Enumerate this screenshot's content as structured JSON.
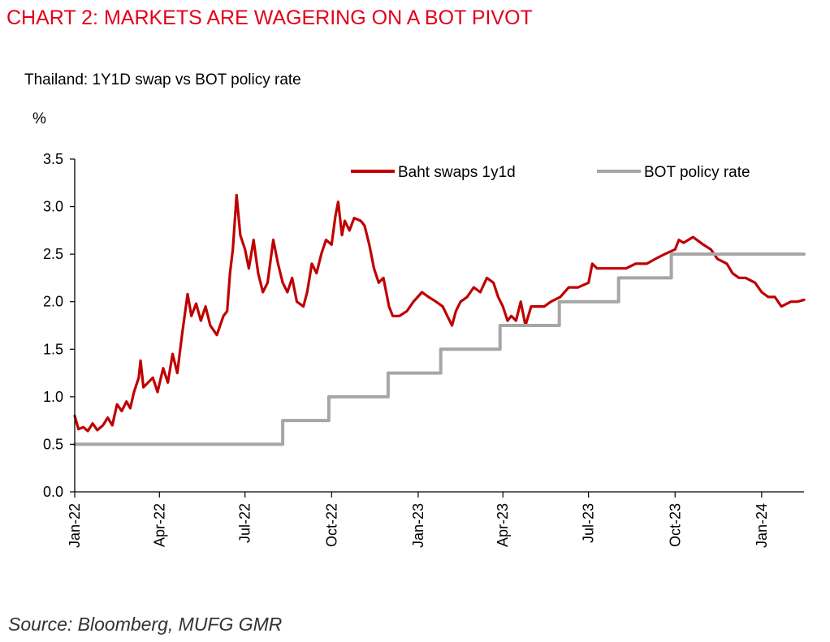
{
  "header": {
    "title": "CHART 2: MARKETS ARE WAGERING ON A BOT PIVOT",
    "subtitle": "Thailand: 1Y1D swap vs BOT policy rate",
    "unit": "%"
  },
  "footer": {
    "source": "Source: Bloomberg, MUFG GMR"
  },
  "colors": {
    "title": "#e3001b",
    "swap": "#c00000",
    "policy": "#a6a6a6"
  },
  "chart_data": {
    "type": "line",
    "title": "Thailand: 1Y1D swap vs BOT policy rate",
    "ylabel": "%",
    "ylim": [
      0,
      3.5
    ],
    "yticks": [
      "0.0",
      "0.5",
      "1.0",
      "1.5",
      "2.0",
      "2.5",
      "3.0",
      "3.5"
    ],
    "x_range": [
      "2022-01-01",
      "2024-02-15"
    ],
    "xticks": [
      {
        "date": "2022-01-01",
        "label": "Jan-22"
      },
      {
        "date": "2022-04-01",
        "label": "Apr-22"
      },
      {
        "date": "2022-07-01",
        "label": "Jul-22"
      },
      {
        "date": "2022-10-01",
        "label": "Oct-22"
      },
      {
        "date": "2023-01-01",
        "label": "Jan-23"
      },
      {
        "date": "2023-04-01",
        "label": "Apr-23"
      },
      {
        "date": "2023-07-01",
        "label": "Jul-23"
      },
      {
        "date": "2023-10-01",
        "label": "Oct-23"
      },
      {
        "date": "2024-01-01",
        "label": "Jan-24"
      }
    ],
    "legend_position": "top-right",
    "grid": false,
    "series": [
      {
        "name": "Baht swaps 1y1d",
        "color": "#c00000",
        "points": [
          [
            "2022-01-01",
            0.8
          ],
          [
            "2022-01-05",
            0.66
          ],
          [
            "2022-01-10",
            0.68
          ],
          [
            "2022-01-15",
            0.64
          ],
          [
            "2022-01-20",
            0.72
          ],
          [
            "2022-01-25",
            0.65
          ],
          [
            "2022-01-31",
            0.7
          ],
          [
            "2022-02-05",
            0.78
          ],
          [
            "2022-02-10",
            0.7
          ],
          [
            "2022-02-15",
            0.92
          ],
          [
            "2022-02-20",
            0.85
          ],
          [
            "2022-02-25",
            0.95
          ],
          [
            "2022-03-01",
            0.88
          ],
          [
            "2022-03-05",
            1.05
          ],
          [
            "2022-03-10",
            1.2
          ],
          [
            "2022-03-12",
            1.38
          ],
          [
            "2022-03-15",
            1.1
          ],
          [
            "2022-03-20",
            1.15
          ],
          [
            "2022-03-25",
            1.2
          ],
          [
            "2022-03-30",
            1.05
          ],
          [
            "2022-04-05",
            1.3
          ],
          [
            "2022-04-10",
            1.15
          ],
          [
            "2022-04-15",
            1.45
          ],
          [
            "2022-04-20",
            1.25
          ],
          [
            "2022-04-25",
            1.65
          ],
          [
            "2022-05-01",
            2.08
          ],
          [
            "2022-05-05",
            1.85
          ],
          [
            "2022-05-10",
            1.98
          ],
          [
            "2022-05-15",
            1.8
          ],
          [
            "2022-05-20",
            1.95
          ],
          [
            "2022-05-25",
            1.75
          ],
          [
            "2022-06-01",
            1.65
          ],
          [
            "2022-06-08",
            1.85
          ],
          [
            "2022-06-12",
            1.9
          ],
          [
            "2022-06-15",
            2.3
          ],
          [
            "2022-06-18",
            2.55
          ],
          [
            "2022-06-22",
            3.12
          ],
          [
            "2022-06-26",
            2.7
          ],
          [
            "2022-07-01",
            2.55
          ],
          [
            "2022-07-05",
            2.35
          ],
          [
            "2022-07-10",
            2.65
          ],
          [
            "2022-07-15",
            2.3
          ],
          [
            "2022-07-20",
            2.1
          ],
          [
            "2022-07-25",
            2.2
          ],
          [
            "2022-07-31",
            2.65
          ],
          [
            "2022-08-05",
            2.4
          ],
          [
            "2022-08-10",
            2.2
          ],
          [
            "2022-08-15",
            2.1
          ],
          [
            "2022-08-20",
            2.25
          ],
          [
            "2022-08-25",
            2.0
          ],
          [
            "2022-09-01",
            1.95
          ],
          [
            "2022-09-05",
            2.1
          ],
          [
            "2022-09-10",
            2.4
          ],
          [
            "2022-09-15",
            2.3
          ],
          [
            "2022-09-20",
            2.5
          ],
          [
            "2022-09-25",
            2.65
          ],
          [
            "2022-10-01",
            2.6
          ],
          [
            "2022-10-05",
            2.9
          ],
          [
            "2022-10-08",
            3.05
          ],
          [
            "2022-10-12",
            2.7
          ],
          [
            "2022-10-15",
            2.85
          ],
          [
            "2022-10-20",
            2.75
          ],
          [
            "2022-10-25",
            2.88
          ],
          [
            "2022-11-01",
            2.85
          ],
          [
            "2022-11-05",
            2.8
          ],
          [
            "2022-11-10",
            2.6
          ],
          [
            "2022-11-15",
            2.35
          ],
          [
            "2022-11-20",
            2.2
          ],
          [
            "2022-11-25",
            2.25
          ],
          [
            "2022-12-01",
            1.95
          ],
          [
            "2022-12-05",
            1.85
          ],
          [
            "2022-12-12",
            1.85
          ],
          [
            "2022-12-20",
            1.9
          ],
          [
            "2022-12-27",
            2.0
          ],
          [
            "2023-01-05",
            2.1
          ],
          [
            "2023-01-12",
            2.05
          ],
          [
            "2023-01-20",
            2.0
          ],
          [
            "2023-01-27",
            1.95
          ],
          [
            "2023-02-01",
            1.85
          ],
          [
            "2023-02-06",
            1.75
          ],
          [
            "2023-02-10",
            1.9
          ],
          [
            "2023-02-15",
            2.0
          ],
          [
            "2023-02-22",
            2.05
          ],
          [
            "2023-03-01",
            2.15
          ],
          [
            "2023-03-08",
            2.1
          ],
          [
            "2023-03-15",
            2.25
          ],
          [
            "2023-03-22",
            2.2
          ],
          [
            "2023-03-27",
            2.05
          ],
          [
            "2023-04-01",
            1.95
          ],
          [
            "2023-04-06",
            1.8
          ],
          [
            "2023-04-10",
            1.85
          ],
          [
            "2023-04-15",
            1.8
          ],
          [
            "2023-04-20",
            2.0
          ],
          [
            "2023-04-25",
            1.75
          ],
          [
            "2023-05-01",
            1.95
          ],
          [
            "2023-05-08",
            1.95
          ],
          [
            "2023-05-15",
            1.95
          ],
          [
            "2023-05-22",
            2.0
          ],
          [
            "2023-06-01",
            2.05
          ],
          [
            "2023-06-10",
            2.15
          ],
          [
            "2023-06-20",
            2.15
          ],
          [
            "2023-07-01",
            2.2
          ],
          [
            "2023-07-05",
            2.4
          ],
          [
            "2023-07-10",
            2.35
          ],
          [
            "2023-07-20",
            2.35
          ],
          [
            "2023-08-01",
            2.35
          ],
          [
            "2023-08-10",
            2.35
          ],
          [
            "2023-08-20",
            2.4
          ],
          [
            "2023-09-01",
            2.4
          ],
          [
            "2023-09-10",
            2.45
          ],
          [
            "2023-09-20",
            2.5
          ],
          [
            "2023-10-01",
            2.55
          ],
          [
            "2023-10-05",
            2.65
          ],
          [
            "2023-10-10",
            2.62
          ],
          [
            "2023-10-20",
            2.68
          ],
          [
            "2023-10-31",
            2.6
          ],
          [
            "2023-11-08",
            2.55
          ],
          [
            "2023-11-15",
            2.45
          ],
          [
            "2023-11-25",
            2.4
          ],
          [
            "2023-12-01",
            2.3
          ],
          [
            "2023-12-08",
            2.25
          ],
          [
            "2023-12-15",
            2.25
          ],
          [
            "2023-12-25",
            2.2
          ],
          [
            "2024-01-01",
            2.1
          ],
          [
            "2024-01-08",
            2.05
          ],
          [
            "2024-01-15",
            2.05
          ],
          [
            "2024-01-22",
            1.95
          ],
          [
            "2024-02-01",
            2.0
          ],
          [
            "2024-02-08",
            2.0
          ],
          [
            "2024-02-15",
            2.02
          ]
        ]
      },
      {
        "name": "BOT policy rate",
        "color": "#a6a6a6",
        "step": true,
        "points": [
          [
            "2022-01-01",
            0.5
          ],
          [
            "2022-08-10",
            0.75
          ],
          [
            "2022-09-28",
            1.0
          ],
          [
            "2022-11-30",
            1.25
          ],
          [
            "2023-01-25",
            1.5
          ],
          [
            "2023-03-29",
            1.75
          ],
          [
            "2023-05-31",
            2.0
          ],
          [
            "2023-08-02",
            2.25
          ],
          [
            "2023-09-27",
            2.5
          ],
          [
            "2024-02-15",
            2.5
          ]
        ]
      }
    ]
  }
}
